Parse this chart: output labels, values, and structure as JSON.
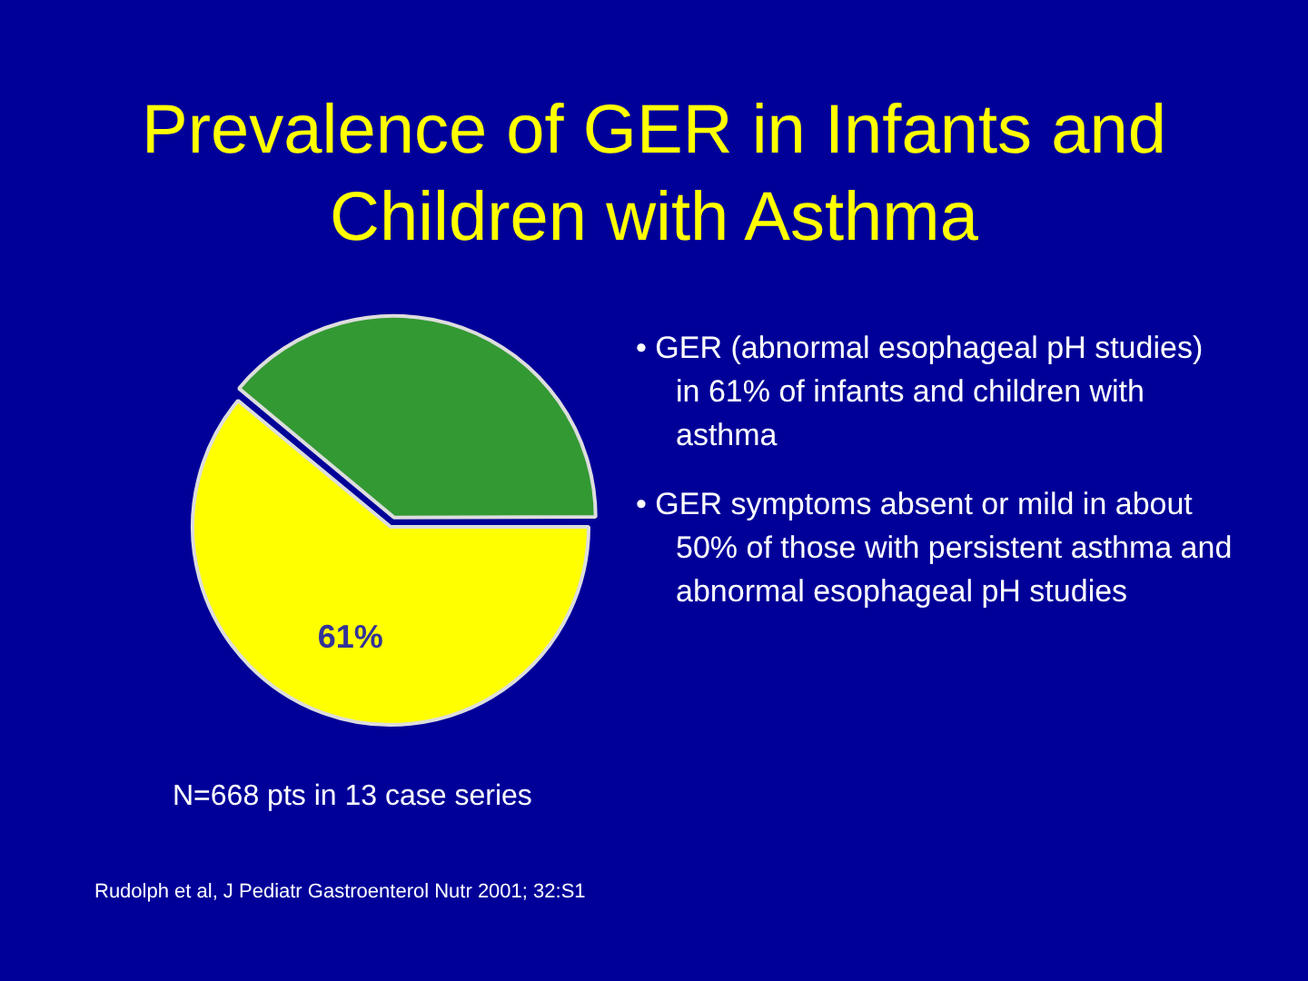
{
  "chart_data": {
    "type": "pie",
    "title": "Prevalence of GER in Infants and Children with Asthma",
    "categories": [
      null,
      null
    ],
    "values": [
      61,
      39
    ],
    "colors": [
      "#ffff00",
      "#339933"
    ],
    "value_labels": [
      "61%",
      null
    ],
    "legend": false,
    "annotations": [
      "• GER (abnormal esophageal pH studies) in 61% of infants and children with asthma",
      "• GER symptoms absent or mild in about 50% of those with persistent asthma and abnormal esophageal pH studies",
      "N=668 pts in 13 case series",
      "Rudolph et al, J Pediatr Gastroenterol Nutr 2001; 32:S1"
    ]
  }
}
